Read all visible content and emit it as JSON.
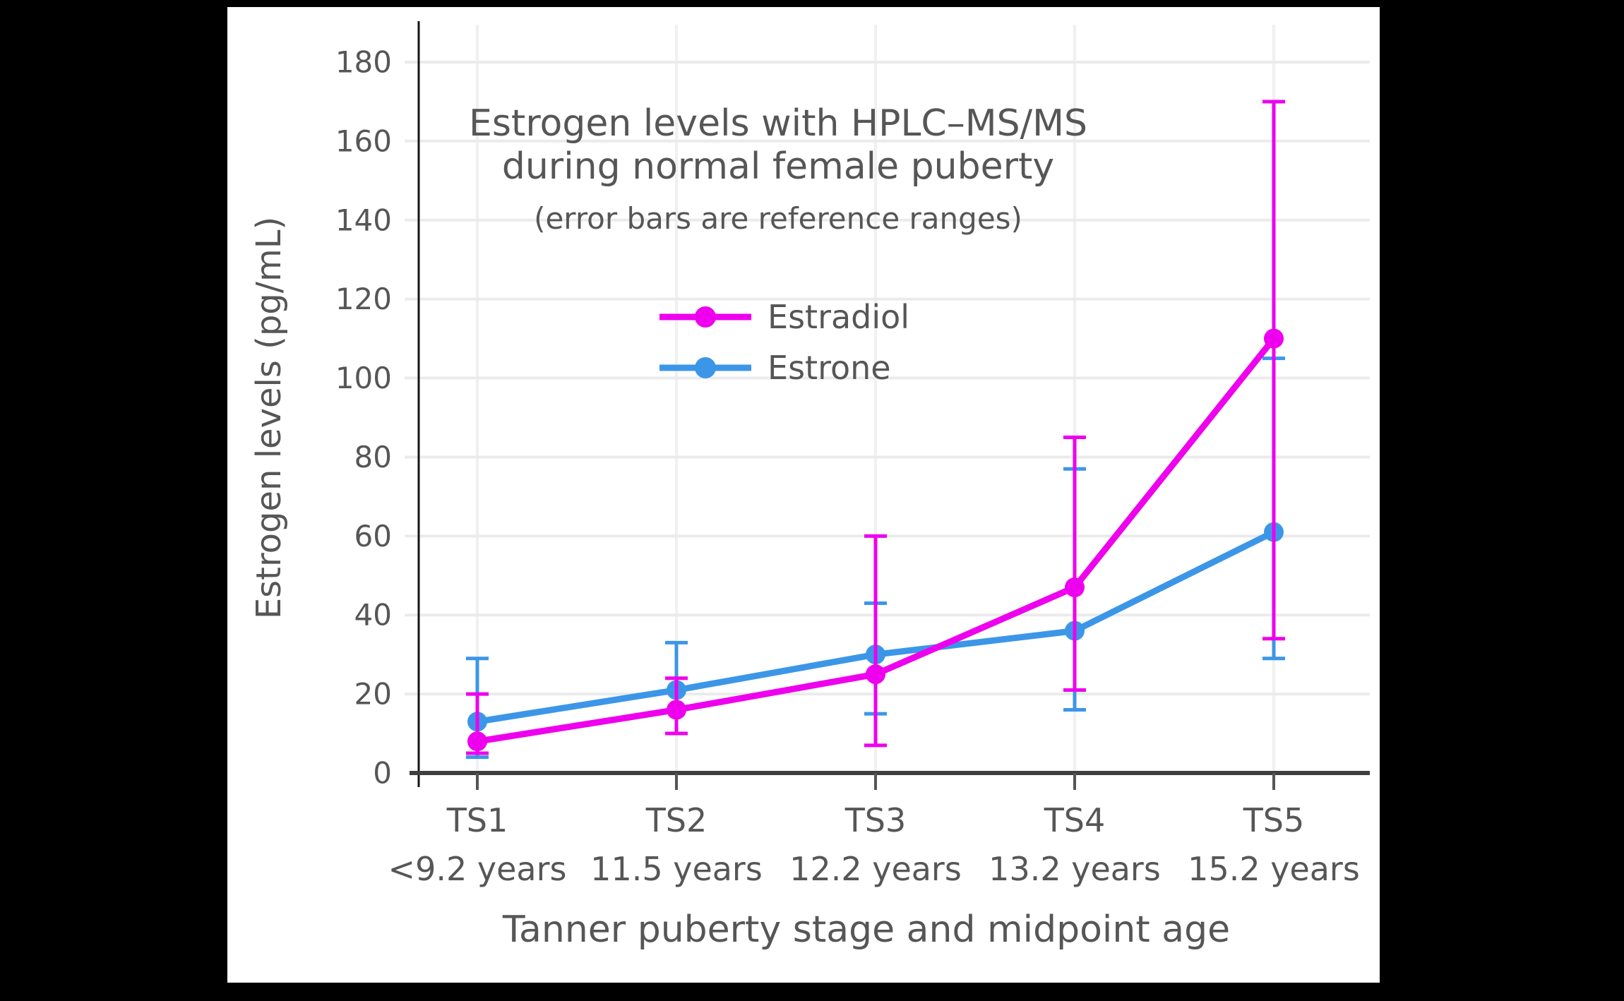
{
  "chart_data": {
    "type": "line",
    "title_line1": "Estrogen levels with HPLC–MS/MS",
    "title_line2": "during normal female puberty",
    "subtitle": "(error bars are reference ranges)",
    "ylabel": "Estrogen levels (pg/mL)",
    "xlabel": "Tanner puberty stage and midpoint age",
    "categories": [
      "TS1",
      "TS2",
      "TS3",
      "TS4",
      "TS5"
    ],
    "category_sublabels": [
      "<9.2 years",
      "11.5 years",
      "12.2 years",
      "13.2 years",
      "15.2 years"
    ],
    "ylim": [
      0,
      180
    ],
    "ytick_step": 20,
    "grid": true,
    "legend_position": "upper-left-inside",
    "error_bars": "reference ranges",
    "series": [
      {
        "name": "Estradiol",
        "color": "#EE00EE",
        "values": [
          8,
          16,
          25,
          47,
          110
        ],
        "range_low": [
          5,
          10,
          7,
          21,
          34
        ],
        "range_high": [
          20,
          24,
          60,
          85,
          170
        ]
      },
      {
        "name": "Estrone",
        "color": "#3C96E8",
        "values": [
          13,
          21,
          30,
          36,
          61
        ],
        "range_low": [
          4,
          10,
          15,
          16,
          29
        ],
        "range_high": [
          29,
          33,
          43,
          77,
          105
        ]
      }
    ]
  },
  "style": {
    "page_background": "#000000",
    "canvas_background": "#ffffff",
    "text_color": "#565656",
    "grid_color": "#EBEBEB",
    "vertical_grid_color": "#F0F0F0",
    "x_axis_color": "#3F3F3F",
    "y_axis_color": "#151515"
  }
}
